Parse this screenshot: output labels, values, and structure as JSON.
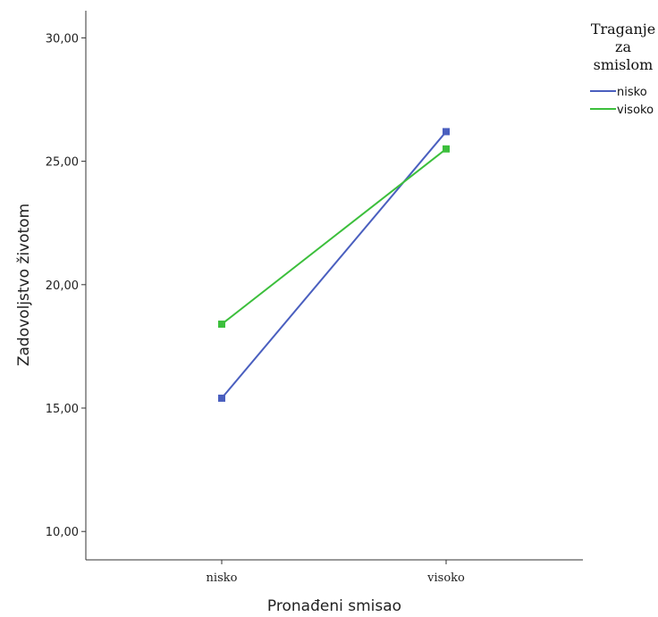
{
  "chart_data": {
    "type": "line",
    "xlabel": "Pronađeni smisao",
    "ylabel": "Zadovoljstvo životom",
    "categories": [
      "nisko",
      "visoko"
    ],
    "y_tick_labels": [
      "10,00",
      "15,00",
      "20,00",
      "25,00",
      "30,00"
    ],
    "y_ticks": [
      10,
      15,
      20,
      25,
      30
    ],
    "ylim": [
      8.85,
      31.1
    ],
    "legend": {
      "title_lines": [
        "Traganje",
        "za",
        "smislom"
      ],
      "placement": "top-right"
    },
    "series": [
      {
        "name": "nisko",
        "values": [
          15.4,
          26.2
        ],
        "color": "#4a5fbf"
      },
      {
        "name": "visoko",
        "values": [
          18.4,
          25.5
        ],
        "color": "#3cbf3c"
      }
    ],
    "grid": false
  }
}
